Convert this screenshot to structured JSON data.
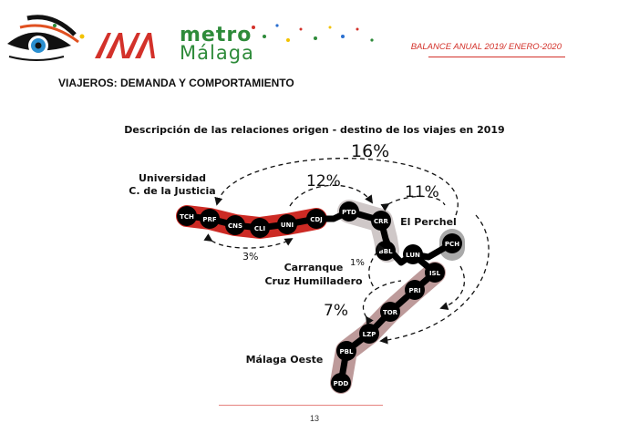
{
  "header": {
    "brand_line1": "metro",
    "brand_line2": "Málaga",
    "report_label": "BALANCE ANUAL 2019/ ENERO-2020",
    "logo_icon": "eye-logo-icon",
    "mm_logo_icon": "mm-logo-icon"
  },
  "section": {
    "title": "VIAJEROS:  DEMANDA Y COMPORTAMIENTO"
  },
  "diagram": {
    "title": "Descripción de las relaciones origen - destino de los viajes en 2019",
    "areas": [
      {
        "label_lines": [
          "Universidad",
          "C. de la Justicia"
        ]
      },
      {
        "label_lines": [
          "El Perchel"
        ]
      },
      {
        "label_lines": [
          "Carranque",
          "Cruz Humilladero"
        ]
      },
      {
        "label_lines": [
          "Málaga Oeste"
        ]
      }
    ],
    "percentages": [
      "16%",
      "12%",
      "11%",
      "3%",
      "1%",
      "7%"
    ],
    "stations": [
      "TCH",
      "PRF",
      "CNS",
      "CLI",
      "UNI",
      "CDJ",
      "PTD",
      "CRR",
      "BBL",
      "LUN",
      "PCH",
      "ISL",
      "PRI",
      "TOR",
      "LZP",
      "PBL",
      "PDD"
    ],
    "colors": {
      "universidad": "#cc2a24",
      "carranque": "#cfc8c8",
      "perchel": "#a9a9a9",
      "oeste": "#bd9a9a",
      "line": "#000000",
      "accent": "#d3312a",
      "brand_green": "#2e8b3a"
    }
  },
  "footer": {
    "page_number": "13"
  }
}
